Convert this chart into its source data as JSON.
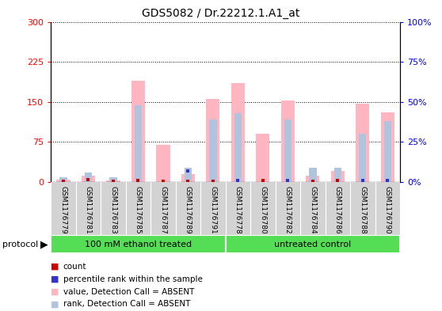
{
  "title": "GDS5082 / Dr.22212.1.A1_at",
  "samples": [
    "GSM1176779",
    "GSM1176781",
    "GSM1176783",
    "GSM1176785",
    "GSM1176787",
    "GSM1176789",
    "GSM1176791",
    "GSM1176778",
    "GSM1176780",
    "GSM1176782",
    "GSM1176784",
    "GSM1176786",
    "GSM1176788",
    "GSM1176790"
  ],
  "group1_label": "100 mM ethanol treated",
  "group2_label": "untreated control",
  "group1_count": 7,
  "group2_count": 7,
  "pink_bars": [
    5,
    12,
    3,
    190,
    70,
    15,
    155,
    185,
    90,
    152,
    12,
    20,
    147,
    130
  ],
  "blue_bars_pct": [
    3,
    6,
    3,
    48,
    0,
    9,
    39,
    43,
    0,
    39,
    9,
    9,
    30,
    38
  ],
  "red_dot_vals": [
    2,
    4,
    1,
    3,
    2,
    2,
    2,
    2,
    3,
    3,
    2,
    3,
    2,
    2
  ],
  "blue_dot_pct": [
    0,
    0,
    0,
    0,
    0,
    7,
    0,
    1,
    0,
    1,
    0,
    0,
    1,
    1
  ],
  "ylim_left": [
    0,
    300
  ],
  "ylim_right": [
    0,
    100
  ],
  "yticks_left": [
    0,
    75,
    150,
    225,
    300
  ],
  "yticks_right": [
    0,
    25,
    50,
    75,
    100
  ],
  "ytick_labels_left": [
    "0",
    "75",
    "150",
    "225",
    "300"
  ],
  "ytick_labels_right": [
    "0%",
    "25%",
    "50%",
    "75%",
    "100%"
  ],
  "pink_color": "#ffb6c1",
  "blue_bar_color": "#b0c4de",
  "red_dot_color": "#cc0000",
  "blue_dot_color": "#3333cc",
  "bar_width": 0.55,
  "blue_bar_width": 0.3
}
